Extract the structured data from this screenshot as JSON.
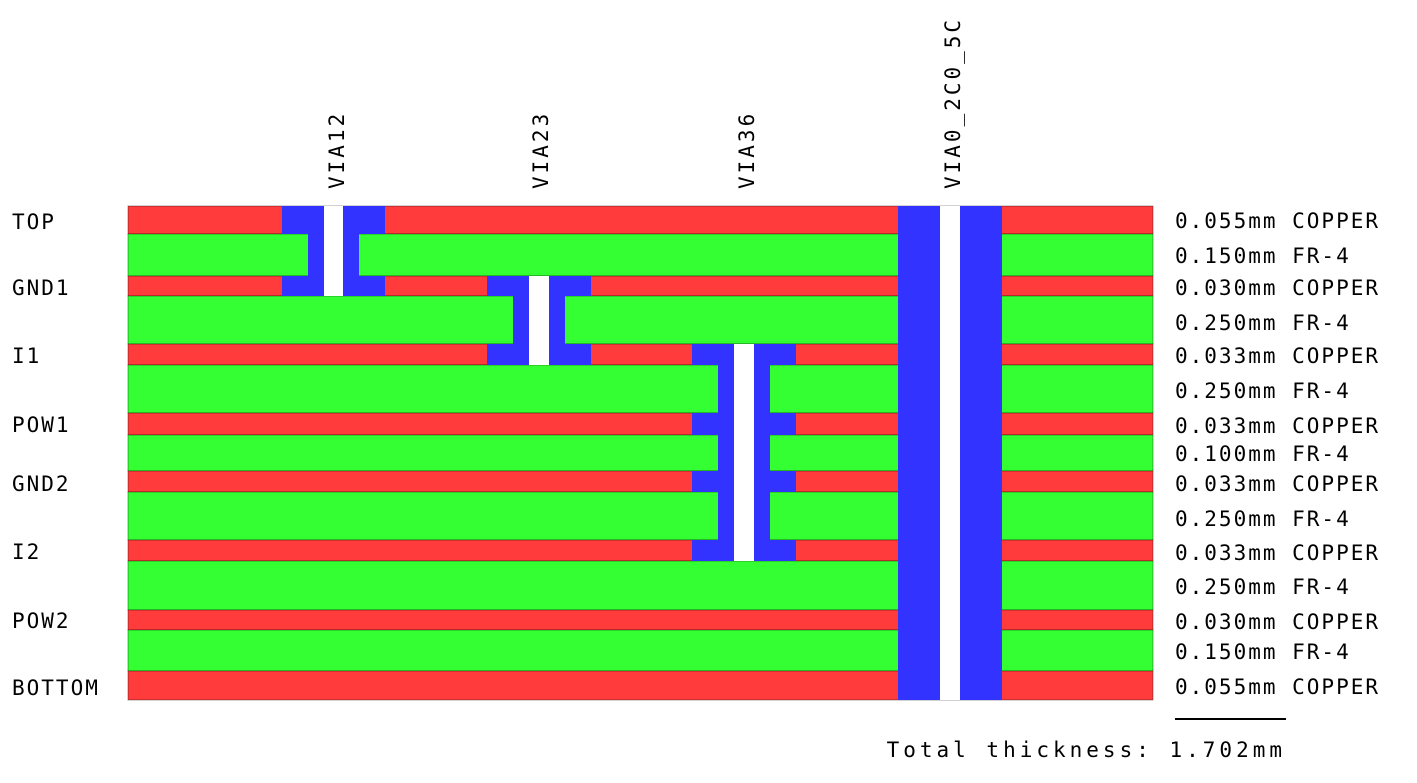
{
  "colors": {
    "copper": "#ff3b3b",
    "dielectric": "#33ff33",
    "via": "#3333ff",
    "hole": "#ffffff",
    "text": "#000000",
    "outline": "#000000"
  },
  "vias": [
    {
      "name": "VIA12"
    },
    {
      "name": "VIA23"
    },
    {
      "name": "VIA36"
    },
    {
      "name": "VIA0_2C0_5C"
    }
  ],
  "layers": [
    {
      "name": "TOP",
      "type": "copper",
      "spec": "0.055mm COPPER"
    },
    {
      "name": "",
      "type": "dielectric",
      "spec": "0.150mm FR-4"
    },
    {
      "name": "GND1",
      "type": "copper",
      "spec": "0.030mm COPPER"
    },
    {
      "name": "",
      "type": "dielectric",
      "spec": "0.250mm FR-4"
    },
    {
      "name": "I1",
      "type": "copper",
      "spec": "0.033mm COPPER"
    },
    {
      "name": "",
      "type": "dielectric",
      "spec": "0.250mm FR-4"
    },
    {
      "name": "POW1",
      "type": "copper",
      "spec": "0.033mm COPPER"
    },
    {
      "name": "",
      "type": "dielectric",
      "spec": "0.100mm FR-4"
    },
    {
      "name": "GND2",
      "type": "copper",
      "spec": "0.033mm COPPER"
    },
    {
      "name": "",
      "type": "dielectric",
      "spec": "0.250mm FR-4"
    },
    {
      "name": "I2",
      "type": "copper",
      "spec": "0.033mm COPPER"
    },
    {
      "name": "",
      "type": "dielectric",
      "spec": "0.250mm FR-4"
    },
    {
      "name": "POW2",
      "type": "copper",
      "spec": "0.030mm COPPER"
    },
    {
      "name": "",
      "type": "dielectric",
      "spec": "0.150mm FR-4"
    },
    {
      "name": "BOTTOM",
      "type": "copper",
      "spec": "0.055mm COPPER"
    }
  ],
  "total": "Total thickness: 1.702mm"
}
